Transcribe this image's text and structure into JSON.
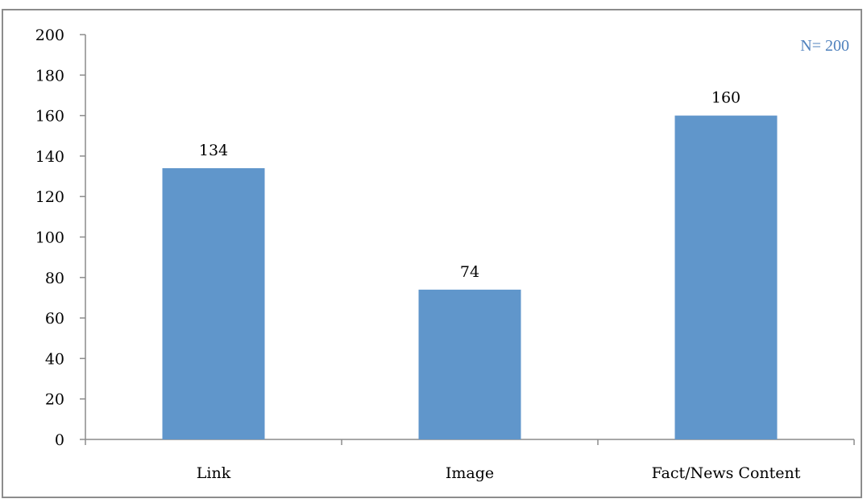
{
  "chart_data": {
    "type": "bar",
    "categories": [
      "Link",
      "Image",
      "Fact/News Content"
    ],
    "values": [
      134,
      74,
      160
    ],
    "title": "",
    "xlabel": "",
    "ylabel": "",
    "ylim": [
      0,
      200
    ],
    "yticks": [
      "0",
      "20",
      "40",
      "60",
      "80",
      "100",
      "120",
      "140",
      "160",
      "180",
      "200"
    ],
    "data_labels": [
      "134",
      "74",
      "160"
    ],
    "annotation": "N= 200",
    "grid": false,
    "legend": "none",
    "colors": {
      "bar": "#6096cb",
      "annotation": "#4f81bd",
      "axis": "#8c8c8c"
    }
  }
}
